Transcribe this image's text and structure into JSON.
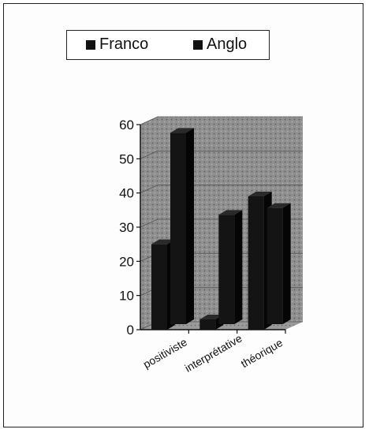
{
  "chart_data": {
    "type": "bar",
    "style": "3d-clustered-column",
    "categories": [
      "positiviste",
      "interprétative",
      "théorique"
    ],
    "series": [
      {
        "name": "Franco",
        "values": [
          25,
          3,
          39
        ]
      },
      {
        "name": "Anglo",
        "values": [
          56,
          32,
          34
        ]
      }
    ],
    "ylim": [
      0,
      60
    ],
    "yticks": [
      0,
      10,
      20,
      30,
      40,
      50,
      60
    ],
    "title": "",
    "xlabel": "",
    "ylabel": "",
    "legend_position": "top",
    "grid": true,
    "colors": {
      "bars": "#111111",
      "wall": "#8a8a8a",
      "frame": "#222222"
    }
  }
}
